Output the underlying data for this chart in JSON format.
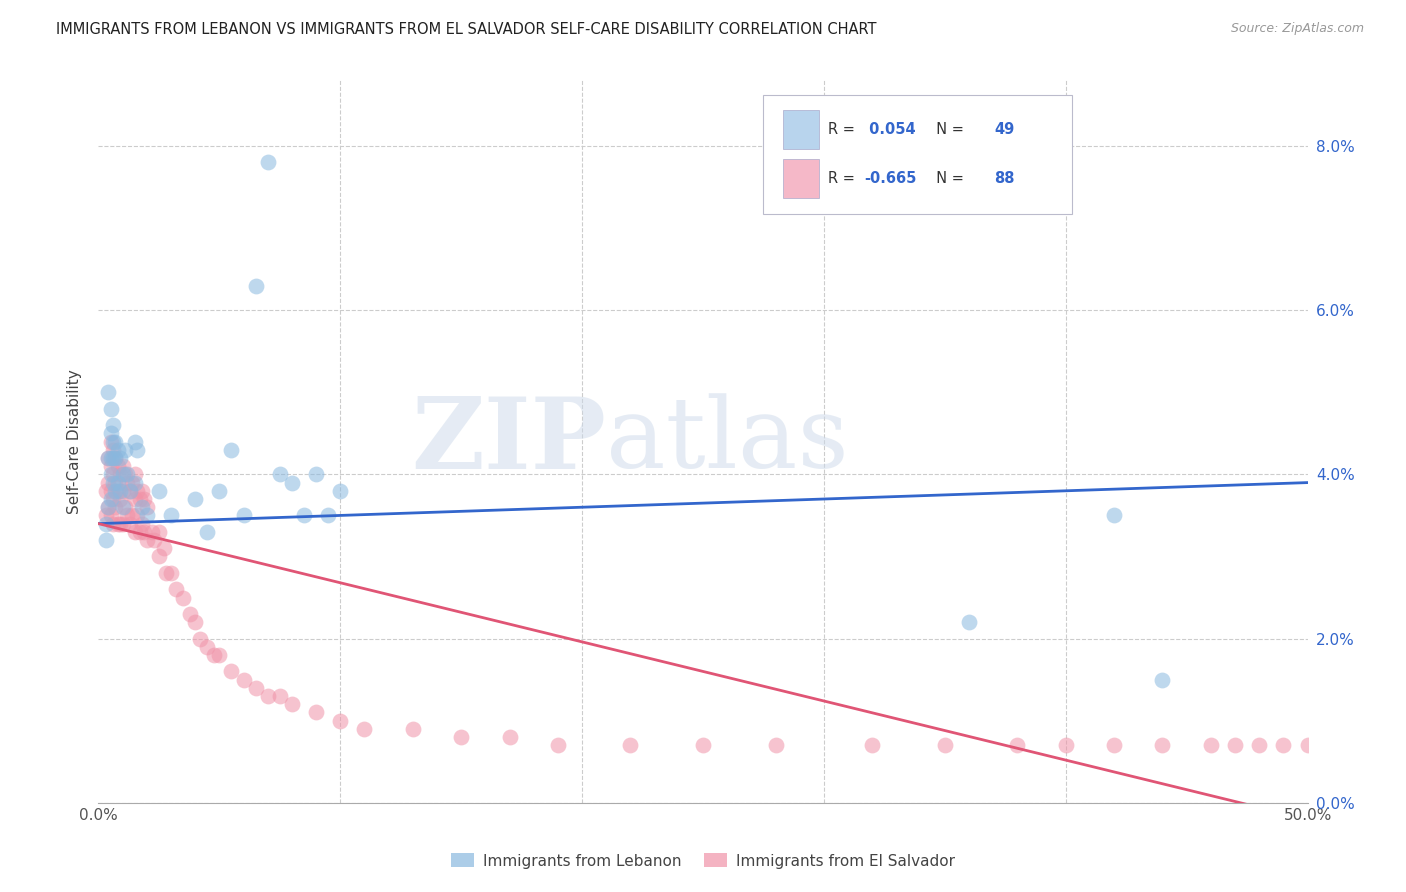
{
  "title": "IMMIGRANTS FROM LEBANON VS IMMIGRANTS FROM EL SALVADOR SELF-CARE DISABILITY CORRELATION CHART",
  "source": "Source: ZipAtlas.com",
  "ylabel": "Self-Care Disability",
  "xlim": [
    0.0,
    0.5
  ],
  "ylim": [
    0.0,
    0.088
  ],
  "watermark_zip": "ZIP",
  "watermark_atlas": "atlas",
  "lebanon_color": "#89b8df",
  "el_salvador_color": "#f093a8",
  "lebanon_line_color": "#3366cc",
  "el_salvador_line_color": "#e05575",
  "legend_entries": [
    {
      "r_label": "R = ",
      "r_val": " 0.054",
      "n_label": "  N = ",
      "n_val": "49",
      "color": "#b8d4ed"
    },
    {
      "r_label": "R = ",
      "r_val": "-0.665",
      "n_label": "  N = ",
      "n_val": "88",
      "color": "#f5b8c8"
    }
  ],
  "lebanon_points_x": [
    0.003,
    0.003,
    0.004,
    0.004,
    0.004,
    0.005,
    0.005,
    0.005,
    0.005,
    0.005,
    0.006,
    0.006,
    0.006,
    0.006,
    0.007,
    0.007,
    0.007,
    0.008,
    0.008,
    0.009,
    0.009,
    0.01,
    0.01,
    0.011,
    0.012,
    0.013,
    0.015,
    0.015,
    0.016,
    0.018,
    0.02,
    0.025,
    0.03,
    0.04,
    0.045,
    0.05,
    0.055,
    0.06,
    0.065,
    0.07,
    0.075,
    0.08,
    0.085,
    0.09,
    0.095,
    0.1,
    0.36,
    0.42,
    0.44
  ],
  "lebanon_points_y": [
    0.034,
    0.032,
    0.05,
    0.042,
    0.036,
    0.048,
    0.045,
    0.042,
    0.04,
    0.037,
    0.046,
    0.044,
    0.042,
    0.039,
    0.044,
    0.042,
    0.038,
    0.043,
    0.039,
    0.042,
    0.038,
    0.04,
    0.036,
    0.043,
    0.04,
    0.038,
    0.044,
    0.039,
    0.043,
    0.036,
    0.035,
    0.038,
    0.035,
    0.037,
    0.033,
    0.038,
    0.043,
    0.035,
    0.063,
    0.078,
    0.04,
    0.039,
    0.035,
    0.04,
    0.035,
    0.038,
    0.022,
    0.035,
    0.015
  ],
  "el_salvador_points_x": [
    0.003,
    0.003,
    0.004,
    0.004,
    0.004,
    0.005,
    0.005,
    0.005,
    0.005,
    0.006,
    0.006,
    0.006,
    0.006,
    0.007,
    0.007,
    0.007,
    0.008,
    0.008,
    0.008,
    0.009,
    0.009,
    0.009,
    0.01,
    0.01,
    0.01,
    0.011,
    0.011,
    0.012,
    0.012,
    0.013,
    0.013,
    0.014,
    0.014,
    0.015,
    0.015,
    0.015,
    0.016,
    0.016,
    0.017,
    0.017,
    0.018,
    0.018,
    0.019,
    0.019,
    0.02,
    0.02,
    0.022,
    0.023,
    0.025,
    0.025,
    0.027,
    0.028,
    0.03,
    0.032,
    0.035,
    0.038,
    0.04,
    0.042,
    0.045,
    0.048,
    0.05,
    0.055,
    0.06,
    0.065,
    0.07,
    0.075,
    0.08,
    0.09,
    0.1,
    0.11,
    0.13,
    0.15,
    0.17,
    0.19,
    0.22,
    0.25,
    0.28,
    0.32,
    0.35,
    0.38,
    0.4,
    0.42,
    0.44,
    0.46,
    0.47,
    0.48,
    0.49,
    0.5
  ],
  "el_salvador_points_y": [
    0.038,
    0.035,
    0.042,
    0.039,
    0.036,
    0.044,
    0.041,
    0.038,
    0.035,
    0.043,
    0.04,
    0.037,
    0.034,
    0.042,
    0.039,
    0.036,
    0.041,
    0.038,
    0.034,
    0.04,
    0.037,
    0.034,
    0.041,
    0.038,
    0.034,
    0.04,
    0.036,
    0.039,
    0.035,
    0.038,
    0.034,
    0.039,
    0.035,
    0.04,
    0.037,
    0.033,
    0.038,
    0.035,
    0.037,
    0.033,
    0.038,
    0.034,
    0.037,
    0.033,
    0.036,
    0.032,
    0.033,
    0.032,
    0.033,
    0.03,
    0.031,
    0.028,
    0.028,
    0.026,
    0.025,
    0.023,
    0.022,
    0.02,
    0.019,
    0.018,
    0.018,
    0.016,
    0.015,
    0.014,
    0.013,
    0.013,
    0.012,
    0.011,
    0.01,
    0.009,
    0.009,
    0.008,
    0.008,
    0.007,
    0.007,
    0.007,
    0.007,
    0.007,
    0.007,
    0.007,
    0.007,
    0.007,
    0.007,
    0.007,
    0.007,
    0.007,
    0.007,
    0.007
  ]
}
